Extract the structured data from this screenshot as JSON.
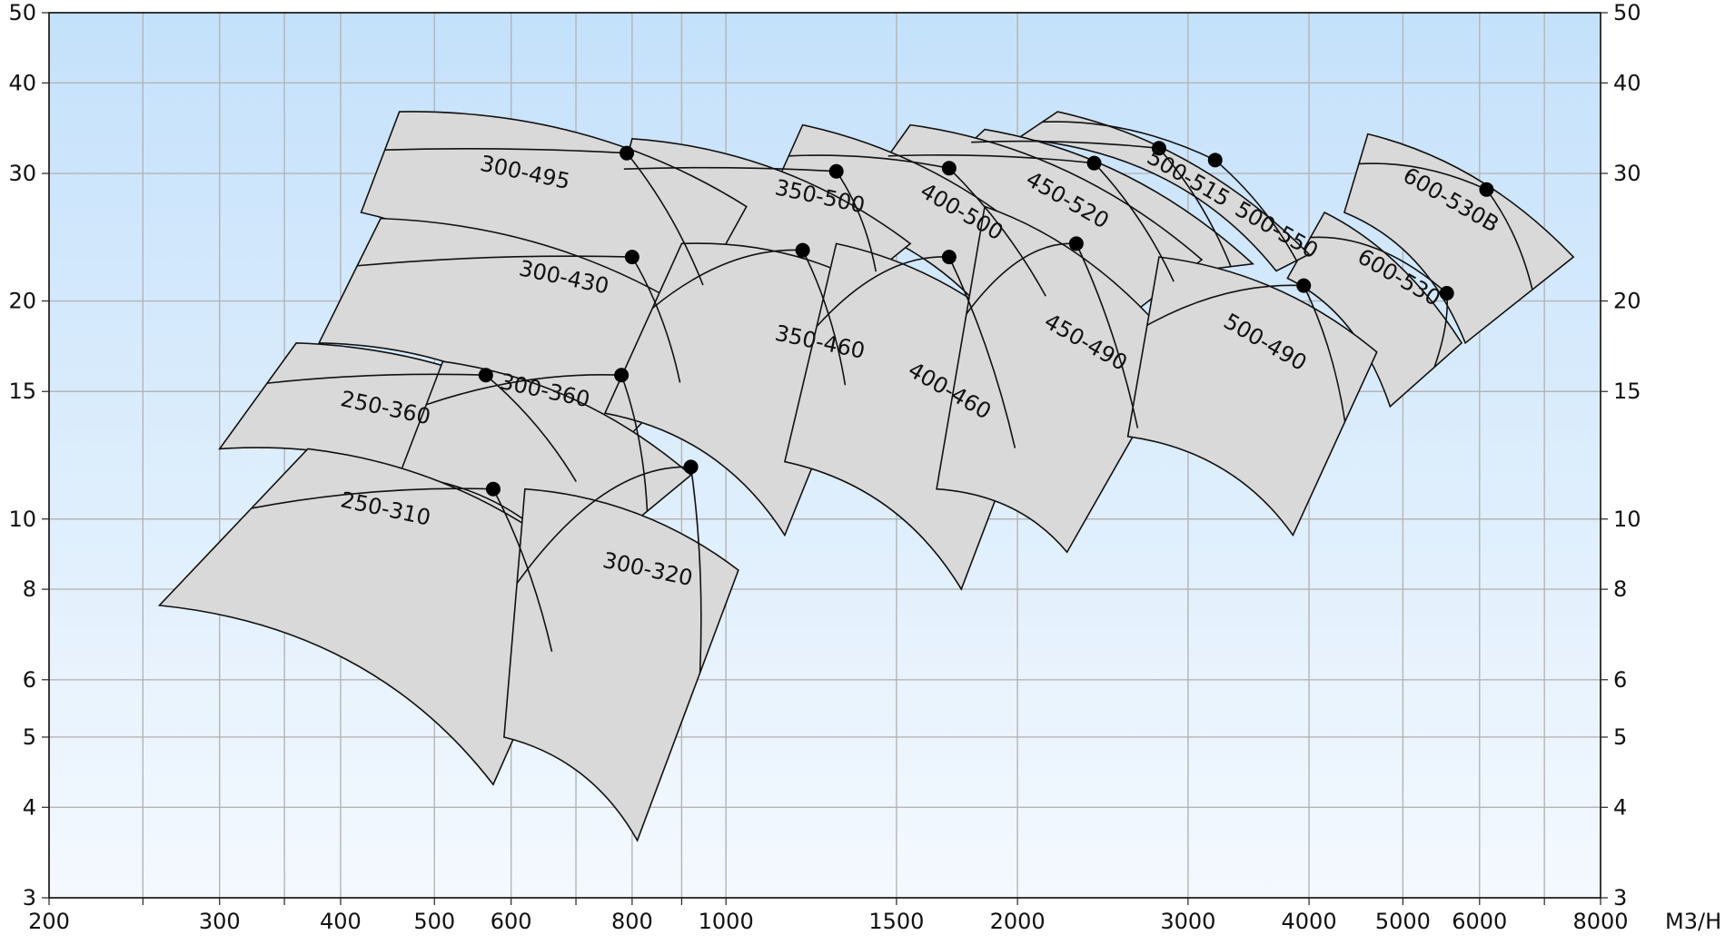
{
  "chart_data": {
    "type": "area",
    "x_scale": "log",
    "y_scale": "log",
    "xlim": [
      200,
      8000
    ],
    "ylim": [
      3,
      50
    ],
    "x_unit": "M3/H",
    "x_ticks": [
      {
        "value": 200,
        "label": "200"
      },
      {
        "value": 250,
        "label": ""
      },
      {
        "value": 300,
        "label": "300"
      },
      {
        "value": 350,
        "label": ""
      },
      {
        "value": 400,
        "label": "400"
      },
      {
        "value": 500,
        "label": "500"
      },
      {
        "value": 600,
        "label": "600"
      },
      {
        "value": 700,
        "label": ""
      },
      {
        "value": 800,
        "label": "800"
      },
      {
        "value": 900,
        "label": ""
      },
      {
        "value": 1000,
        "label": "1000"
      },
      {
        "value": 1500,
        "label": "1500"
      },
      {
        "value": 2000,
        "label": "2000"
      },
      {
        "value": 3000,
        "label": "3000"
      },
      {
        "value": 4000,
        "label": "4000"
      },
      {
        "value": 5000,
        "label": "5000"
      },
      {
        "value": 6000,
        "label": "6000"
      },
      {
        "value": 7000,
        "label": ""
      },
      {
        "value": 8000,
        "label": "8000"
      }
    ],
    "y_ticks": [
      {
        "value": 3,
        "label": "3"
      },
      {
        "value": 4,
        "label": "4"
      },
      {
        "value": 5,
        "label": "5"
      },
      {
        "value": 6,
        "label": "6"
      },
      {
        "value": 8,
        "label": "8"
      },
      {
        "value": 10,
        "label": "10"
      },
      {
        "value": 15,
        "label": "15"
      },
      {
        "value": 20,
        "label": "20"
      },
      {
        "value": 30,
        "label": "30"
      },
      {
        "value": 40,
        "label": "40"
      },
      {
        "value": 50,
        "label": "50"
      }
    ],
    "grid": true,
    "colors": {
      "region_fill": "#d9d9d9",
      "outline": "#111111",
      "background_top": "#c4e1fb",
      "background_bottom": "#f4f9fe",
      "grid": "#b4b4b4",
      "point": "#000000"
    },
    "series": [
      {
        "name": "600-530B",
        "label_at": [
          5600,
          27.5
        ],
        "label_angle": 30,
        "corners": {
          "ul": [
            4600,
            34
          ],
          "ur": [
            7500,
            23
          ],
          "lr": [
            5800,
            17.5
          ],
          "ll": [
            4350,
            26.5
          ]
        },
        "bep": [
          6100,
          28.5
        ]
      },
      {
        "name": "600-530",
        "label_at": [
          4950,
          21.5
        ],
        "label_angle": 30,
        "corners": {
          "ul": [
            4150,
            26.5
          ],
          "ur": [
            5750,
            17.5
          ],
          "lr": [
            4850,
            14.3
          ],
          "ll": [
            3800,
            21.5
          ]
        },
        "bep": [
          5550,
          20.5
        ]
      },
      {
        "name": "500-550",
        "label_at": [
          3700,
          25
        ],
        "label_angle": 30,
        "corners": {
          "ul": [
            2200,
            36.5
          ],
          "ur": [
            4000,
            23.2
          ],
          "lr": [
            3700,
            22
          ],
          "ll": [
            2000,
            33.5
          ]
        },
        "bep": [
          3200,
          31.3
        ]
      },
      {
        "name": "500-515",
        "label_at": [
          3000,
          29.5
        ],
        "label_angle": 30,
        "corners": {
          "ul": [
            1850,
            34.5
          ],
          "ur": [
            3500,
            22.5
          ],
          "lr": [
            3050,
            22
          ],
          "ll": [
            1700,
            31
          ]
        },
        "bep": [
          2800,
          32.5
        ]
      },
      {
        "name": "450-520",
        "label_at": [
          2250,
          27.5
        ],
        "label_angle": 30,
        "corners": {
          "ul": [
            1550,
            35
          ],
          "ur": [
            3100,
            22.8
          ],
          "lr": [
            2600,
            19
          ],
          "ll": [
            1350,
            27
          ]
        },
        "bep": [
          2400,
          31
        ]
      },
      {
        "name": "400-500",
        "label_at": [
          1750,
          26.5
        ],
        "label_angle": 30,
        "corners": {
          "ul": [
            1200,
            35
          ],
          "ur": [
            2300,
            21.5
          ],
          "lr": [
            1900,
            18.5
          ],
          "ll": [
            1100,
            27
          ]
        },
        "bep": [
          1700,
          30.5
        ]
      },
      {
        "name": "350-500",
        "label_at": [
          1250,
          27.8
        ],
        "label_angle": 12,
        "corners": {
          "ul": [
            800,
            33.5
          ],
          "ur": [
            1550,
            24
          ],
          "lr": [
            1250,
            19
          ],
          "ll": [
            760,
            26
          ]
        },
        "bep": [
          1300,
          30.2
        ]
      },
      {
        "name": "300-495",
        "label_at": [
          620,
          30
        ],
        "label_angle": 12,
        "corners": {
          "ul": [
            460,
            36.5
          ],
          "ur": [
            1050,
            27
          ],
          "lr": [
            800,
            14
          ],
          "ll": [
            420,
            26.5
          ]
        },
        "bep": [
          790,
          32
        ]
      },
      {
        "name": "300-430",
        "label_at": [
          680,
          21.5
        ],
        "label_angle": 12,
        "corners": {
          "ul": [
            440,
            26
          ],
          "ur": [
            1000,
            18
          ],
          "lr": [
            750,
            12
          ],
          "ll": [
            380,
            17.5
          ]
        },
        "bep": [
          800,
          23
        ]
      },
      {
        "name": "350-460",
        "label_at": [
          1250,
          17.5
        ],
        "label_angle": 12,
        "corners": {
          "ul": [
            900,
            24
          ],
          "ur": [
            1450,
            20.5
          ],
          "lr": [
            1150,
            9.5
          ],
          "ll": [
            750,
            14
          ]
        },
        "bep": [
          1200,
          23.5
        ]
      },
      {
        "name": "400-460",
        "label_at": [
          1700,
          15
        ],
        "label_angle": 30,
        "corners": {
          "ul": [
            1300,
            24
          ],
          "ur": [
            2150,
            16.5
          ],
          "lr": [
            1750,
            8
          ],
          "ll": [
            1150,
            12
          ]
        },
        "bep": [
          1700,
          23
        ]
      },
      {
        "name": "450-490",
        "label_at": [
          2350,
          17.5
        ],
        "label_angle": 30,
        "corners": {
          "ul": [
            1850,
            27
          ],
          "ur": [
            2950,
            17
          ],
          "lr": [
            2250,
            9
          ],
          "ll": [
            1650,
            11
          ]
        },
        "bep": [
          2300,
          24
        ]
      },
      {
        "name": "500-490",
        "label_at": [
          3600,
          17.5
        ],
        "label_angle": 30,
        "corners": {
          "ul": [
            2800,
            23
          ],
          "ur": [
            4700,
            17
          ],
          "lr": [
            3850,
            9.5
          ],
          "ll": [
            2600,
            13
          ]
        },
        "bep": [
          3950,
          21
        ]
      },
      {
        "name": "250-360",
        "label_at": [
          445,
          14.2
        ],
        "label_angle": 12,
        "corners": {
          "ul": [
            360,
            17.5
          ],
          "ur": [
            770,
            12.5
          ],
          "lr": [
            600,
            9.5
          ],
          "ll": [
            300,
            12.5
          ]
        },
        "bep": [
          565,
          15.8
        ]
      },
      {
        "name": "300-360",
        "label_at": [
          650,
          15
        ],
        "label_angle": 12,
        "corners": {
          "ul": [
            510,
            16.5
          ],
          "ur": [
            920,
            11.5
          ],
          "lr": [
            700,
            8.5
          ],
          "ll": [
            460,
            11.5
          ]
        },
        "bep": [
          780,
          15.8
        ]
      },
      {
        "name": "250-310",
        "label_at": [
          445,
          10.3
        ],
        "label_angle": 12,
        "corners": {
          "ul": [
            370,
            12.5
          ],
          "ur": [
            720,
            8.5
          ],
          "lr": [
            575,
            4.3
          ],
          "ll": [
            260,
            7.6
          ]
        },
        "bep": [
          575,
          11
        ]
      },
      {
        "name": "300-320",
        "label_at": [
          830,
          8.5
        ],
        "label_angle": 12,
        "corners": {
          "ul": [
            620,
            11
          ],
          "ur": [
            1030,
            8.5
          ],
          "lr": [
            810,
            3.6
          ],
          "ll": [
            590,
            5
          ]
        },
        "bep": [
          920,
          11.8
        ]
      }
    ]
  }
}
